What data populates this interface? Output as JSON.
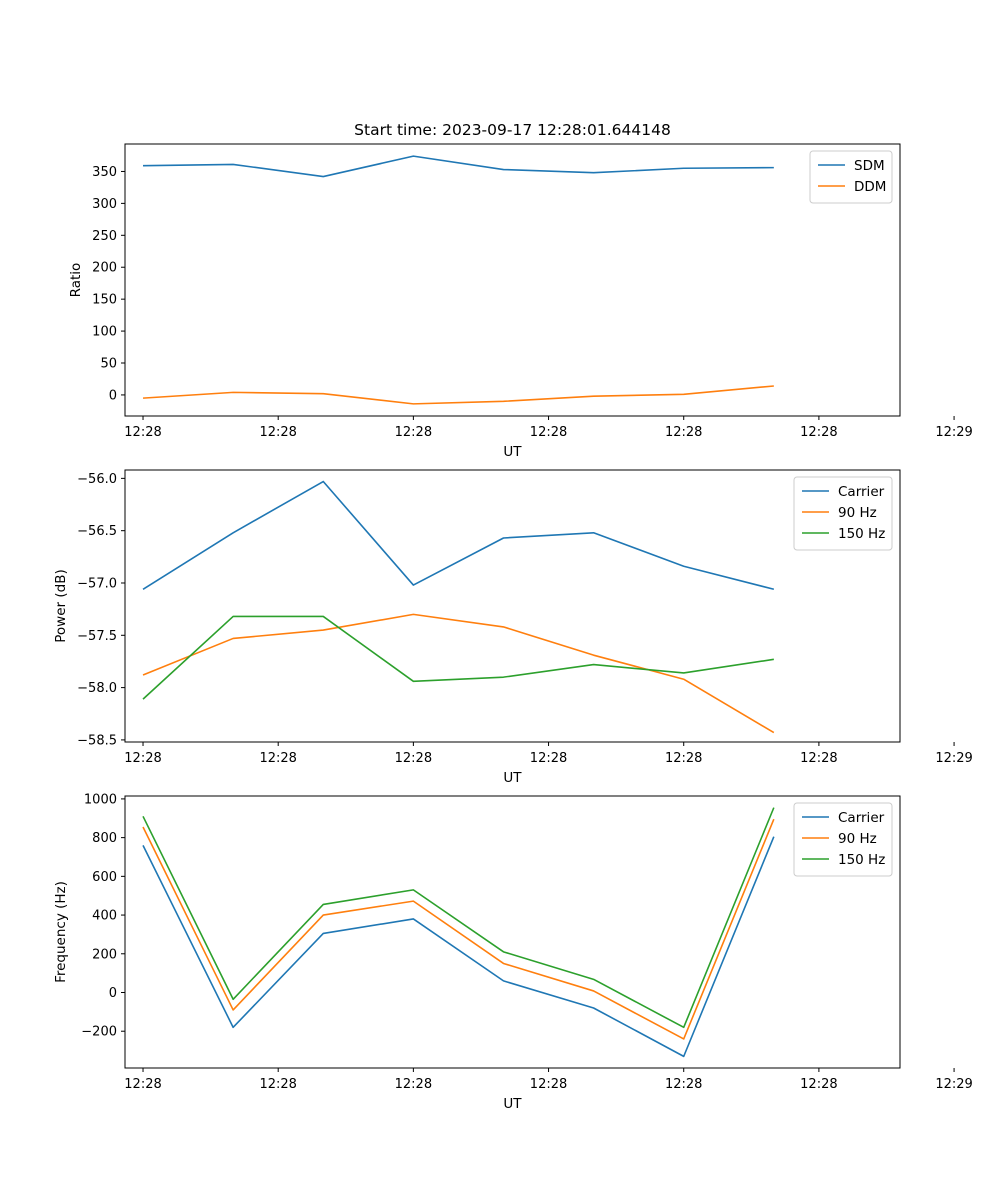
{
  "figure_title": "Start time: 2023-09-17 12:28:01.644148",
  "chart_data": [
    {
      "type": "line",
      "title": "Start time: 2023-09-17 12:28:01.644148",
      "xlabel": "UT",
      "ylabel": "Ratio",
      "x": [
        1,
        2,
        3,
        4,
        5,
        6,
        7,
        8
      ],
      "xlim": [
        0.8,
        9.4
      ],
      "ylim": [
        -33,
        393
      ],
      "xticks": [
        1,
        2.5,
        4,
        5.5,
        7,
        8.5,
        10
      ],
      "xtick_labels": [
        "12:28",
        "12:28",
        "12:28",
        "12:28",
        "12:28",
        "12:28",
        "12:29"
      ],
      "yticks": [
        0,
        50,
        100,
        150,
        200,
        250,
        300,
        350
      ],
      "ytick_labels": [
        "0",
        "50",
        "100",
        "150",
        "200",
        "250",
        "300",
        "350"
      ],
      "grid": false,
      "legend_position": "top-right",
      "series": [
        {
          "name": "SDM",
          "color": "#1f77b4",
          "values": [
            359,
            361,
            342,
            374,
            353,
            348,
            355,
            356
          ]
        },
        {
          "name": "DDM",
          "color": "#ff7f0e",
          "values": [
            -5,
            4,
            2,
            -14,
            -10,
            -2,
            1,
            14
          ]
        }
      ]
    },
    {
      "type": "line",
      "title": "",
      "xlabel": "UT",
      "ylabel": "Power (dB)",
      "x": [
        1,
        2,
        3,
        4,
        5,
        6,
        7,
        8
      ],
      "xlim": [
        0.8,
        9.4
      ],
      "ylim": [
        -58.52,
        -55.92
      ],
      "xticks": [
        1,
        2.5,
        4,
        5.5,
        7,
        8.5,
        10
      ],
      "xtick_labels": [
        "12:28",
        "12:28",
        "12:28",
        "12:28",
        "12:28",
        "12:28",
        "12:29"
      ],
      "yticks": [
        -58.5,
        -58.0,
        -57.5,
        -57.0,
        -56.5,
        -56.0
      ],
      "ytick_labels": [
        "−58.5",
        "−58.0",
        "−57.5",
        "−57.0",
        "−56.5",
        "−56.0"
      ],
      "grid": false,
      "legend_position": "top-right",
      "series": [
        {
          "name": "Carrier",
          "color": "#1f77b4",
          "values": [
            -57.06,
            -56.52,
            -56.03,
            -57.02,
            -56.57,
            -56.52,
            -56.84,
            -57.06
          ]
        },
        {
          "name": "90 Hz",
          "color": "#ff7f0e",
          "values": [
            -57.88,
            -57.53,
            -57.45,
            -57.3,
            -57.42,
            -57.69,
            -57.92,
            -58.43
          ]
        },
        {
          "name": "150 Hz",
          "color": "#2ca02c",
          "values": [
            -58.11,
            -57.32,
            -57.32,
            -57.94,
            -57.9,
            -57.78,
            -57.86,
            -57.73
          ]
        }
      ]
    },
    {
      "type": "line",
      "title": "",
      "xlabel": "UT",
      "ylabel": "Frequency (Hz)",
      "x": [
        1,
        2,
        3,
        4,
        5,
        6,
        7,
        8
      ],
      "xlim": [
        0.8,
        9.4
      ],
      "ylim": [
        -390,
        1015
      ],
      "xticks": [
        1,
        2.5,
        4,
        5.5,
        7,
        8.5,
        10
      ],
      "xtick_labels": [
        "12:28",
        "12:28",
        "12:28",
        "12:28",
        "12:28",
        "12:28",
        "12:29"
      ],
      "yticks": [
        -200,
        0,
        200,
        400,
        600,
        800,
        1000
      ],
      "ytick_labels": [
        "−200",
        "0",
        "200",
        "400",
        "600",
        "800",
        "1000"
      ],
      "grid": false,
      "legend_position": "top-right",
      "series": [
        {
          "name": "Carrier",
          "color": "#1f77b4",
          "values": [
            760,
            -180,
            305,
            380,
            60,
            -80,
            -330,
            805
          ]
        },
        {
          "name": "90 Hz",
          "color": "#ff7f0e",
          "values": [
            855,
            -90,
            400,
            472,
            150,
            8,
            -240,
            895
          ]
        },
        {
          "name": "150 Hz",
          "color": "#2ca02c",
          "values": [
            910,
            -35,
            455,
            530,
            210,
            68,
            -180,
            955
          ]
        }
      ]
    }
  ]
}
